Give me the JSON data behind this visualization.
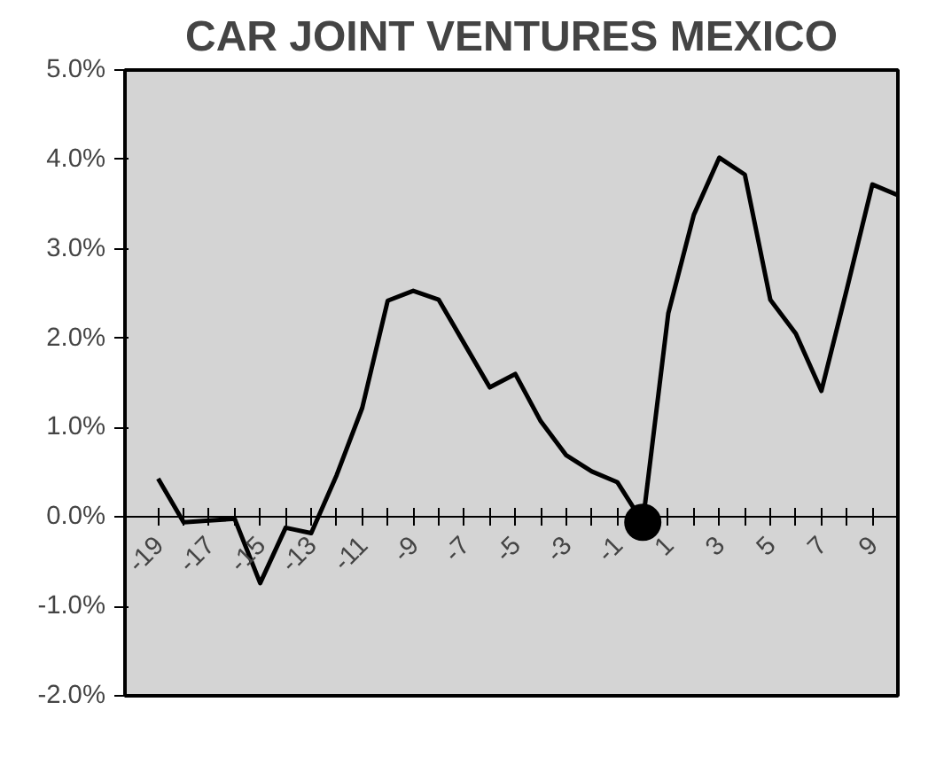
{
  "chart_data": {
    "type": "line",
    "title": "CAR JOINT VENTURES MEXICO",
    "categories": [
      "-19",
      null,
      "-17",
      null,
      "-15",
      null,
      "-13",
      null,
      "-11",
      null,
      "-9",
      null,
      "-7",
      null,
      "-5",
      null,
      "-3",
      null,
      "-1",
      null,
      "1",
      null,
      "3",
      null,
      "5",
      null,
      "7",
      null,
      "9",
      null
    ],
    "series": [
      {
        "color": "#000000",
        "values": [
          0.43,
          -0.06,
          -0.04,
          -0.02,
          -0.74,
          -0.12,
          -0.18,
          0.47,
          1.22,
          2.42,
          2.53,
          2.43,
          1.94,
          1.45,
          1.6,
          1.07,
          0.69,
          0.51,
          0.39,
          -0.06,
          2.28,
          3.38,
          4.02,
          3.83,
          2.43,
          2.05,
          1.41,
          2.55,
          3.72,
          3.6
        ]
      },
      {
        "type": "scatter",
        "color": "#000000",
        "marker": "circle",
        "values": [
          null,
          null,
          null,
          null,
          null,
          null,
          null,
          null,
          null,
          null,
          null,
          null,
          null,
          null,
          null,
          null,
          null,
          null,
          null,
          -0.06,
          null,
          null,
          null,
          null,
          null,
          null,
          null,
          null,
          null,
          null
        ]
      }
    ],
    "ylim": [
      -2,
      5
    ],
    "yticks": [
      {
        "value": -2,
        "label": "-2.0%"
      },
      {
        "value": -1,
        "label": "-1.0%"
      },
      {
        "value": 0,
        "label": "0.0%"
      },
      {
        "value": 1,
        "label": "1.0%"
      },
      {
        "value": 2,
        "label": "2.0%"
      },
      {
        "value": 3,
        "label": "3.0%"
      },
      {
        "value": 4,
        "label": "4.0%"
      },
      {
        "value": 5,
        "label": "5.0%"
      }
    ],
    "grid": false,
    "marker": "none"
  }
}
